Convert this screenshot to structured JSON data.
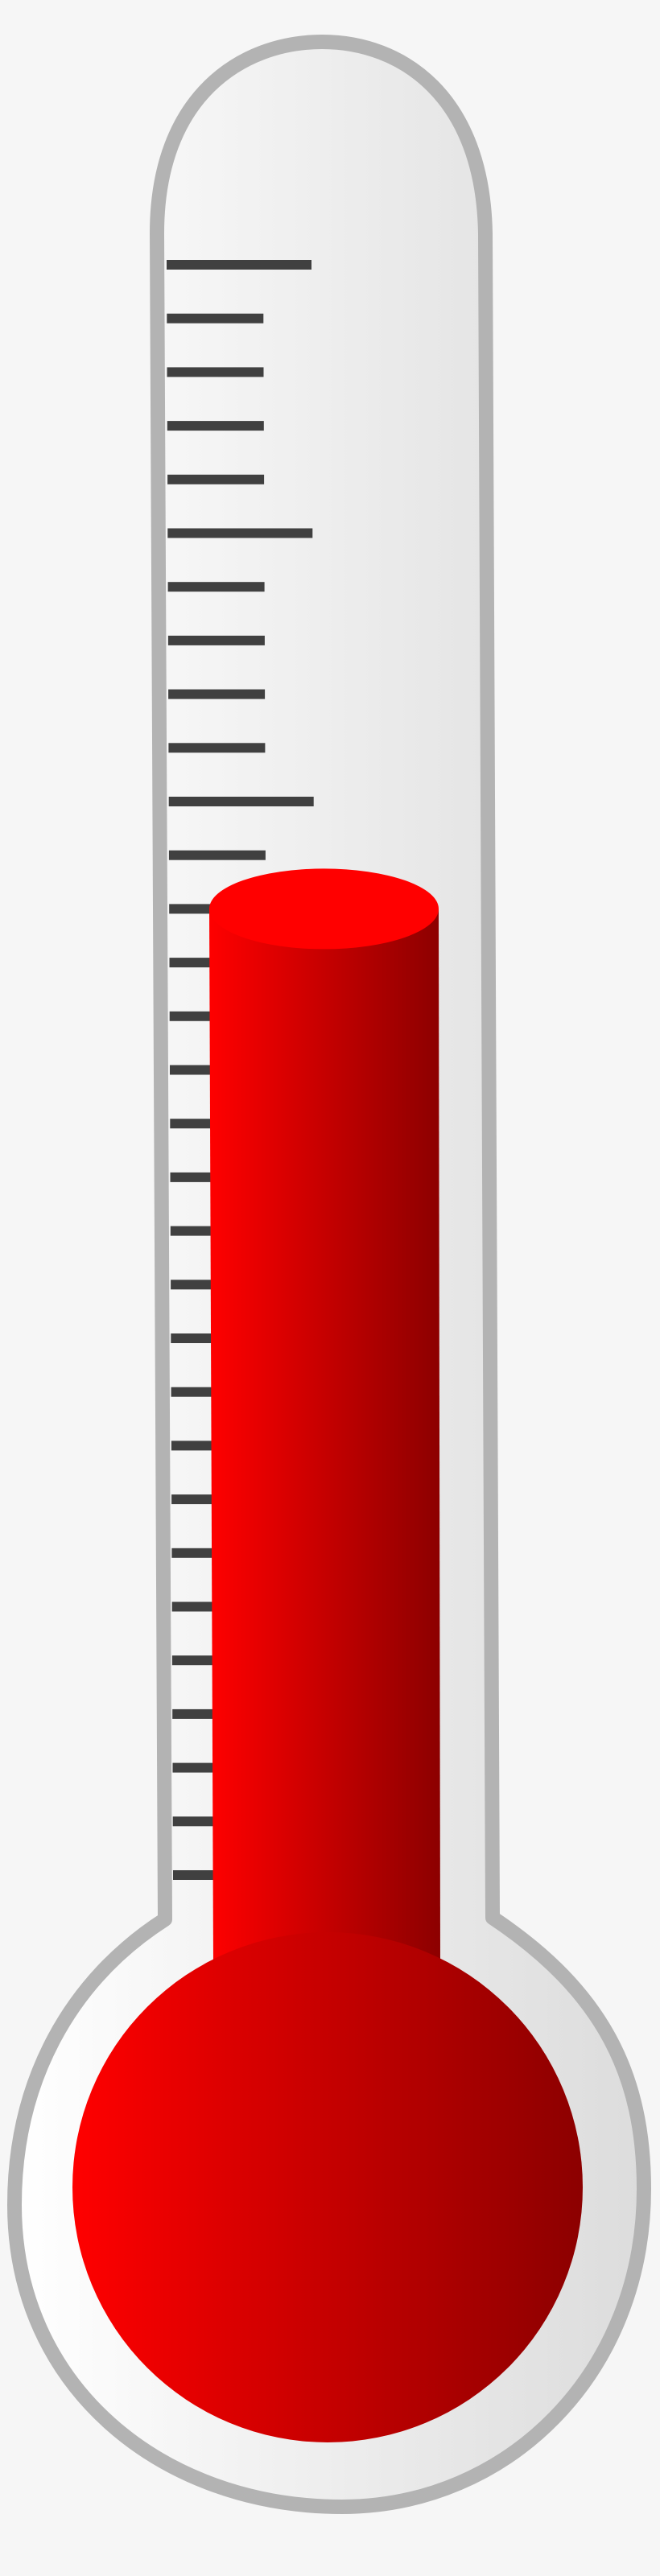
{
  "thermometer": {
    "fill_level": 0.6,
    "tick_count": 31,
    "major_every": 5,
    "colors": {
      "background": "#f6f6f6",
      "glass_light": "#ffffff",
      "glass_dark": "#dcdcdc",
      "outline": "#b3b3b3",
      "tick": "#404040",
      "mercury_light": "#ff0000",
      "mercury_dark": "#8c0000",
      "mercury_top": "#ff0000"
    }
  }
}
